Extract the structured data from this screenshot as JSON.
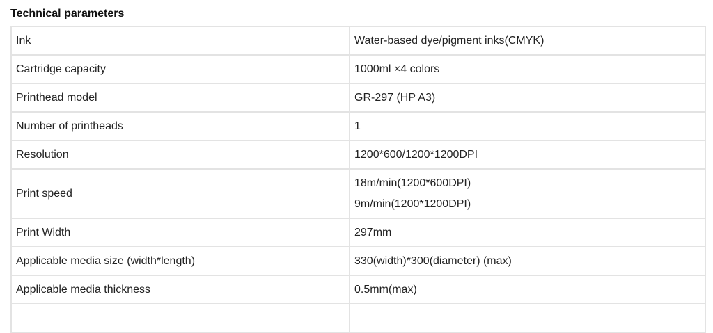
{
  "title": "Technical parameters",
  "rows": [
    {
      "label": "Ink",
      "value": "Water-based dye/pigment inks(CMYK)"
    },
    {
      "label": "Cartridge capacity",
      "value": "1000ml ×4 colors"
    },
    {
      "label": "Printhead model",
      "value": "GR-297 (HP A3)"
    },
    {
      "label": "Number of printheads",
      "value": "1"
    },
    {
      "label": "Resolution",
      "value": "1200*600/1200*1200DPI"
    },
    {
      "label": "Print speed",
      "value": "18m/min(1200*600DPI)",
      "value2": "9m/min(1200*1200DPI)"
    },
    {
      "label": "Print Width",
      "value": "297mm"
    },
    {
      "label": "Applicable media size (width*length)",
      "value": "330(width)*300(diameter) (max)"
    },
    {
      "label": "Applicable media thickness",
      "value": "0.5mm(max)"
    }
  ]
}
